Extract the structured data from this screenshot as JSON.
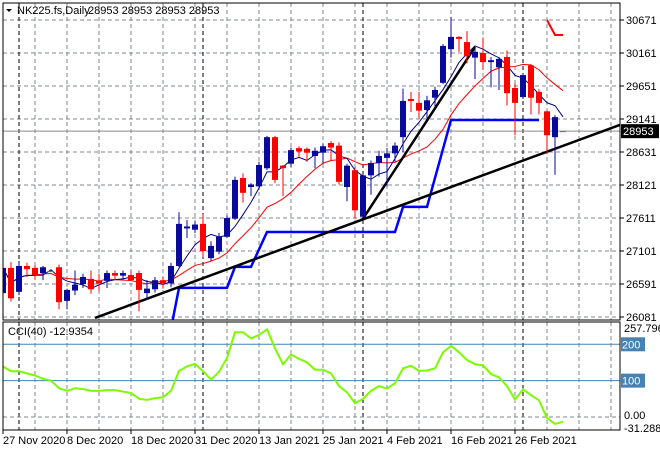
{
  "chart_data": [
    {
      "type": "candlestick",
      "title": "NK225.fs,Daily",
      "ohlc_readout": "28953 28953 28953 28953",
      "current_price": 28953,
      "current_price_label": "28953",
      "ylim": [
        26081,
        30671
      ],
      "y_ticks": [
        "30671",
        "30161",
        "29651",
        "29141",
        "28631",
        "28121",
        "27611",
        "27101",
        "26591",
        "26081"
      ],
      "x_ticks": [
        {
          "bar": 0,
          "label": "27 Nov 2020"
        },
        {
          "bar": 8,
          "label": "8 Dec 2020"
        },
        {
          "bar": 16,
          "label": "18 Dec 2020"
        },
        {
          "bar": 24,
          "label": "31 Dec 2020"
        },
        {
          "bar": 32,
          "label": "13 Jan 2021"
        },
        {
          "bar": 40,
          "label": "25 Jan 2021"
        },
        {
          "bar": 48,
          "label": "4 Feb 2021"
        },
        {
          "bar": 56,
          "label": "16 Feb 2021"
        },
        {
          "bar": 64,
          "label": "26 Feb 2021"
        }
      ],
      "month_separators": [
        2,
        25,
        45,
        65
      ],
      "grid": true,
      "ohlc": [
        [
          26450,
          26900,
          26400,
          26840
        ],
        [
          26840,
          26930,
          26320,
          26370
        ],
        [
          26470,
          26950,
          26420,
          26870
        ],
        [
          26870,
          26920,
          26700,
          26820
        ],
        [
          26840,
          26880,
          26660,
          26730
        ],
        [
          26760,
          26870,
          26650,
          26850
        ],
        [
          26790,
          26800,
          26780,
          26790
        ],
        [
          26850,
          26890,
          26200,
          26310
        ],
        [
          26330,
          26520,
          26200,
          26500
        ],
        [
          26490,
          26800,
          26420,
          26580
        ],
        [
          26590,
          26750,
          26530,
          26700
        ],
        [
          26670,
          26800,
          26440,
          26510
        ],
        [
          26640,
          26750,
          26480,
          26600
        ],
        [
          26640,
          26800,
          26530,
          26760
        ],
        [
          26760,
          26800,
          26650,
          26720
        ],
        [
          26720,
          26800,
          26650,
          26760
        ],
        [
          26730,
          26800,
          26640,
          26650
        ],
        [
          26760,
          26800,
          26170,
          26500
        ],
        [
          26450,
          26650,
          26350,
          26520
        ],
        [
          26510,
          26700,
          26460,
          26650
        ],
        [
          26650,
          26700,
          26520,
          26600
        ],
        [
          26600,
          26920,
          26540,
          26870
        ],
        [
          26870,
          27700,
          26850,
          27520
        ],
        [
          27450,
          27580,
          27300,
          27480
        ],
        [
          27430,
          27560,
          27380,
          27510
        ],
        [
          27520,
          27670,
          27000,
          27100
        ],
        [
          26990,
          27250,
          26950,
          27180
        ],
        [
          27090,
          27380,
          27050,
          27320
        ],
        [
          27320,
          27650,
          27300,
          27610
        ],
        [
          27600,
          28250,
          27580,
          28200
        ],
        [
          28230,
          28300,
          27850,
          28000
        ],
        [
          28090,
          28150,
          27950,
          28130
        ],
        [
          28100,
          28480,
          28050,
          28430
        ],
        [
          28380,
          28880,
          28350,
          28860
        ],
        [
          28860,
          28880,
          28150,
          28200
        ],
        [
          28420,
          28430,
          27950,
          28380
        ],
        [
          28450,
          28700,
          28400,
          28660
        ],
        [
          28690,
          28720,
          28550,
          28640
        ],
        [
          28680,
          28700,
          28480,
          28620
        ],
        [
          28570,
          28700,
          28380,
          28650
        ],
        [
          28620,
          28760,
          28450,
          28720
        ],
        [
          28770,
          28800,
          28500,
          28700
        ],
        [
          28730,
          28780,
          28130,
          28170
        ],
        [
          28090,
          28450,
          27870,
          28420
        ],
        [
          28350,
          28400,
          27600,
          27730
        ],
        [
          27630,
          28280,
          27620,
          28270
        ],
        [
          28270,
          28500,
          27970,
          28460
        ],
        [
          28460,
          28650,
          28250,
          28570
        ],
        [
          28540,
          28690,
          28100,
          28610
        ],
        [
          28610,
          28780,
          28480,
          28730
        ],
        [
          28860,
          29610,
          28630,
          29420
        ],
        [
          29450,
          29560,
          29250,
          29420
        ],
        [
          29390,
          29560,
          29150,
          29270
        ],
        [
          29280,
          29500,
          29140,
          29430
        ],
        [
          29470,
          29640,
          29330,
          29590
        ],
        [
          29700,
          30300,
          29680,
          30270
        ],
        [
          30220,
          30720,
          30090,
          30410
        ],
        [
          30410,
          30420,
          30180,
          30380
        ],
        [
          30330,
          30500,
          30000,
          30110
        ],
        [
          30090,
          30230,
          29760,
          30180
        ],
        [
          30160,
          30400,
          29900,
          30020
        ],
        [
          30020,
          30100,
          29630,
          30050
        ],
        [
          29940,
          30100,
          29590,
          30070
        ],
        [
          30100,
          30200,
          29350,
          29540
        ],
        [
          29620,
          29700,
          28890,
          29390
        ],
        [
          29480,
          29840,
          29450,
          29820
        ],
        [
          29970,
          29990,
          29210,
          29470
        ],
        [
          29560,
          29600,
          29210,
          29390
        ],
        [
          29260,
          29270,
          28600,
          28890
        ],
        [
          28860,
          29200,
          28280,
          29170
        ],
        [
          28953,
          28953,
          28953,
          28953
        ]
      ],
      "step_line": [
        [
          21,
          25900
        ],
        [
          22,
          26531
        ],
        [
          28,
          26531
        ],
        [
          29,
          26855
        ],
        [
          31,
          26855
        ],
        [
          33,
          27395
        ],
        [
          49,
          27395
        ],
        [
          50,
          27782
        ],
        [
          53,
          27782
        ],
        [
          56,
          29126
        ],
        [
          67,
          29126
        ]
      ],
      "trendlines": [
        {
          "from": {
            "bar": 11.5,
            "price": 26067
          },
          "to": {
            "bar": 77.1,
            "price": 29049
          }
        },
        {
          "from": {
            "bar": 45,
            "price": 27600
          },
          "to": {
            "bar": 59,
            "price": 30254
          }
        }
      ],
      "red_marker": [
        [
          68,
          30671
        ],
        [
          69,
          30440
        ],
        [
          70,
          30440
        ]
      ],
      "colors": {
        "bull": "#0a0a9a",
        "bear": "#ff0000",
        "doji": "#00c000",
        "ma_fast": "#000080",
        "ma_slow": "#ff0000",
        "step": "#0000ff",
        "trend": "#000000",
        "cci": "#7cfc00",
        "level": "#4682b4"
      }
    },
    {
      "type": "line",
      "title": "CCI(40) -12.9354",
      "ylim": [
        -31.2889,
        257.796
      ],
      "y_ticks": [
        "257.796",
        "200",
        "100",
        "0.00",
        "-31.2889"
      ],
      "levels": [
        200,
        100
      ],
      "values": [
        139,
        126,
        126,
        120,
        114,
        105,
        100,
        79,
        72,
        79,
        77,
        72,
        72,
        74,
        74,
        70,
        66,
        50,
        47,
        52,
        54,
        72,
        127,
        139,
        146,
        126,
        103,
        124,
        162,
        233,
        233,
        216,
        226,
        241,
        189,
        145,
        172,
        160,
        150,
        130,
        130,
        120,
        85,
        68,
        38,
        50,
        72,
        85,
        78,
        93,
        134,
        141,
        127,
        128,
        134,
        178,
        196,
        178,
        157,
        145,
        142,
        118,
        109,
        85,
        48,
        76,
        60,
        46,
        -3,
        -19,
        -12.9354
      ]
    }
  ]
}
